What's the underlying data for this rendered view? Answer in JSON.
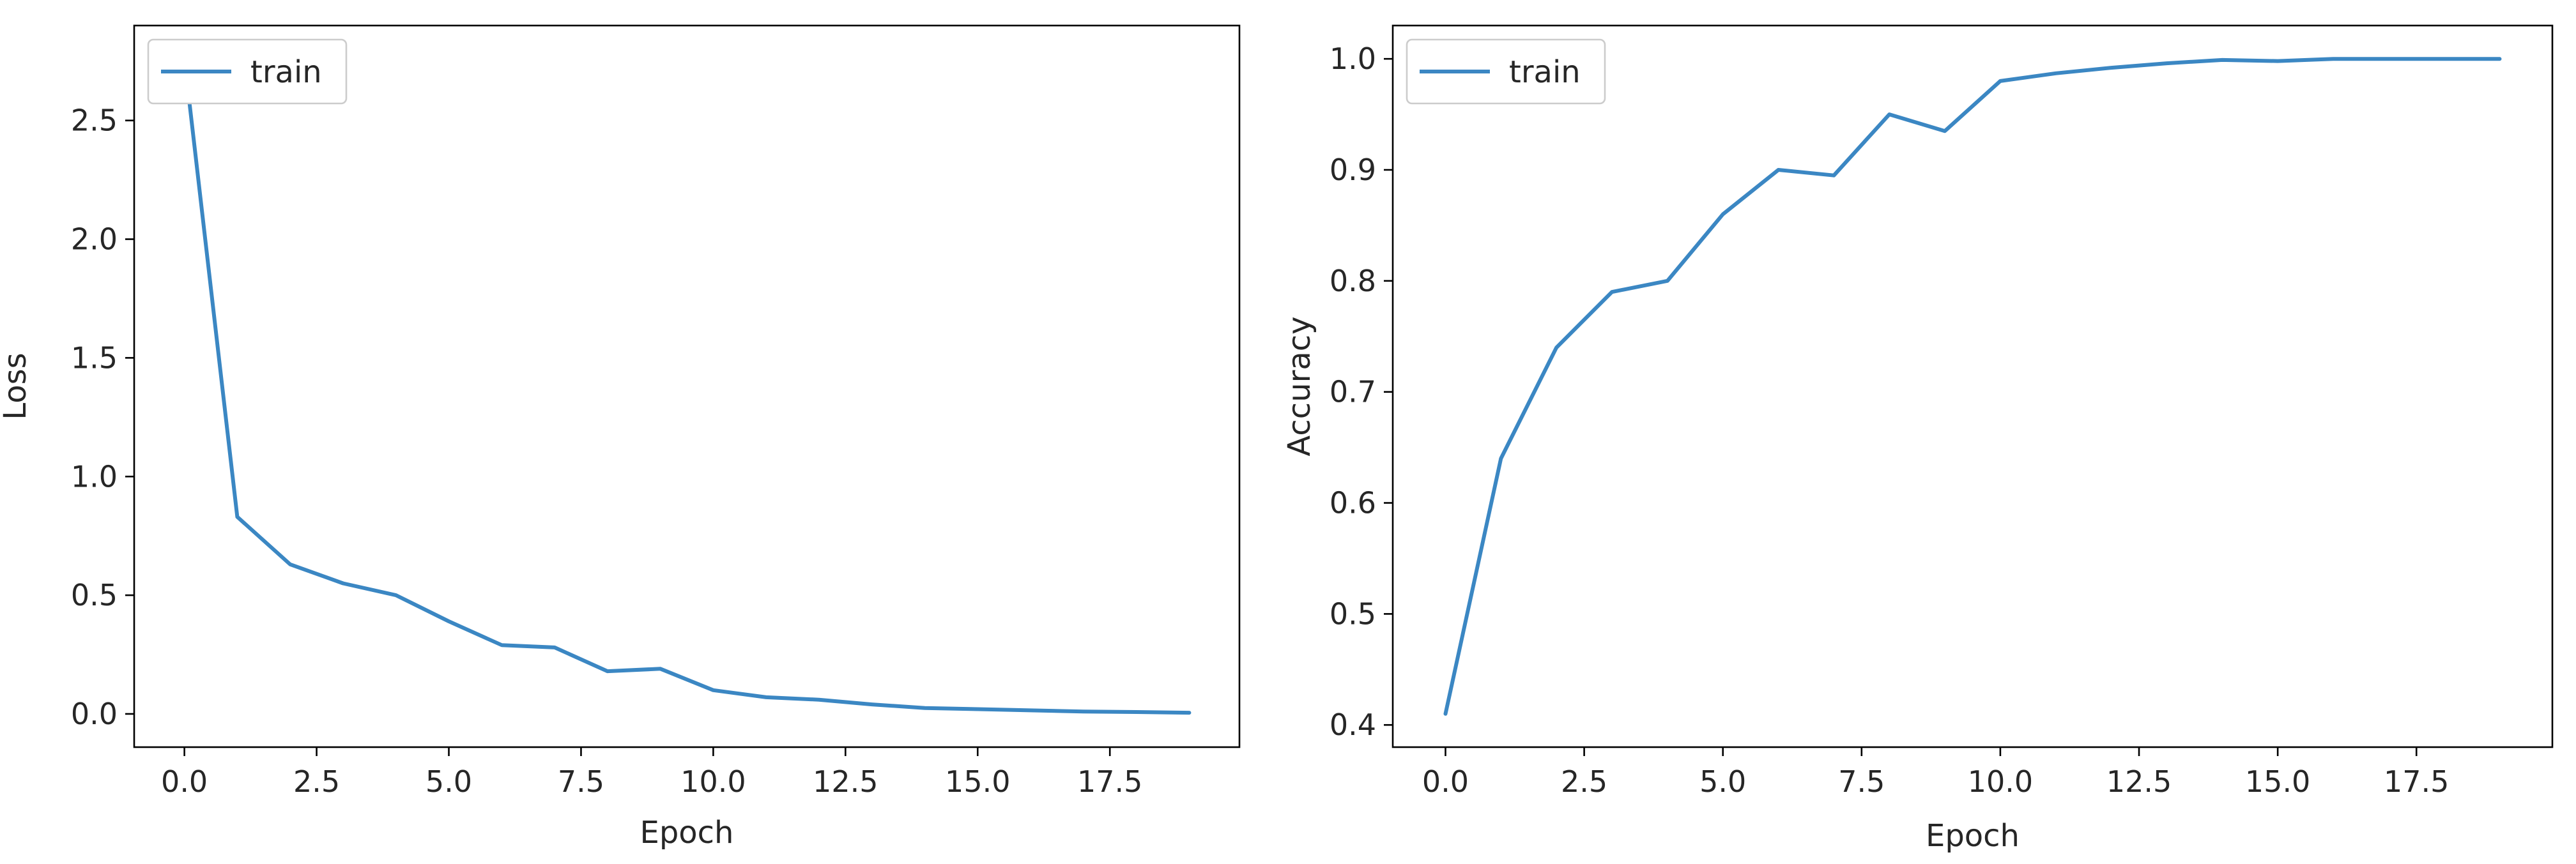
{
  "colors": {
    "series": "#3b87c3"
  },
  "chart_data": [
    {
      "type": "line",
      "xlabel": "Epoch",
      "ylabel": "Loss",
      "xlim": [
        -0.95,
        19.95
      ],
      "ylim": [
        -0.14,
        2.9
      ],
      "x_ticks": [
        0.0,
        2.5,
        5.0,
        7.5,
        10.0,
        12.5,
        15.0,
        17.5
      ],
      "x_tick_labels": [
        "0.0",
        "2.5",
        "5.0",
        "7.5",
        "10.0",
        "12.5",
        "15.0",
        "17.5"
      ],
      "y_ticks": [
        0.0,
        0.5,
        1.0,
        1.5,
        2.0,
        2.5
      ],
      "y_tick_labels": [
        "0.0",
        "0.5",
        "1.0",
        "1.5",
        "2.0",
        "2.5"
      ],
      "legend": "upper left",
      "grid": false,
      "series": [
        {
          "name": "train",
          "x": [
            0,
            1,
            2,
            3,
            4,
            5,
            6,
            7,
            8,
            9,
            10,
            11,
            12,
            13,
            14,
            15,
            16,
            17,
            18,
            19
          ],
          "y": [
            2.76,
            0.83,
            0.63,
            0.55,
            0.5,
            0.39,
            0.29,
            0.28,
            0.18,
            0.19,
            0.1,
            0.07,
            0.06,
            0.04,
            0.025,
            0.02,
            0.015,
            0.01,
            0.008,
            0.005
          ]
        }
      ]
    },
    {
      "type": "line",
      "xlabel": "Epoch",
      "ylabel": "Accuracy",
      "xlim": [
        -0.95,
        19.95
      ],
      "ylim": [
        0.38,
        1.03
      ],
      "x_ticks": [
        0.0,
        2.5,
        5.0,
        7.5,
        10.0,
        12.5,
        15.0,
        17.5
      ],
      "x_tick_labels": [
        "0.0",
        "2.5",
        "5.0",
        "7.5",
        "10.0",
        "12.5",
        "15.0",
        "17.5"
      ],
      "y_ticks": [
        0.4,
        0.5,
        0.6,
        0.7,
        0.8,
        0.9,
        1.0
      ],
      "y_tick_labels": [
        "0.4",
        "0.5",
        "0.6",
        "0.7",
        "0.8",
        "0.9",
        "1.0"
      ],
      "legend": "upper left",
      "grid": false,
      "series": [
        {
          "name": "train",
          "x": [
            0,
            1,
            2,
            3,
            4,
            5,
            6,
            7,
            8,
            9,
            10,
            11,
            12,
            13,
            14,
            15,
            16,
            17,
            18,
            19
          ],
          "y": [
            0.41,
            0.64,
            0.74,
            0.79,
            0.8,
            0.86,
            0.9,
            0.895,
            0.95,
            0.935,
            0.98,
            0.987,
            0.992,
            0.996,
            0.999,
            0.998,
            1.0,
            1.0,
            1.0,
            1.0
          ]
        }
      ]
    }
  ]
}
